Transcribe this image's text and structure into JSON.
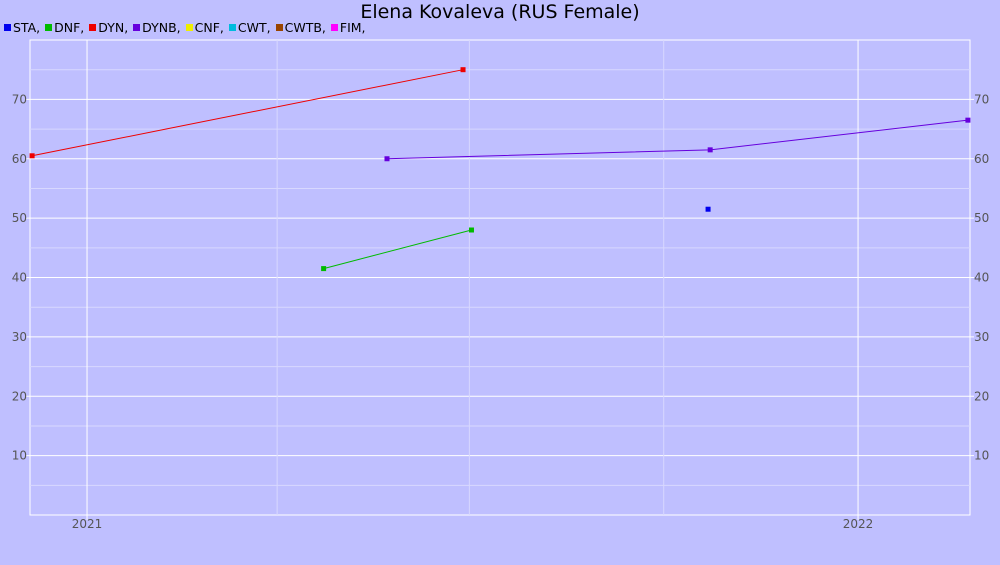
{
  "chart_data": {
    "type": "line",
    "title": "Elena Kovaleva (RUS Female)",
    "xlabel": "",
    "ylabel": "",
    "xlim": [
      "2020-12-05",
      "2022-02-23"
    ],
    "ylim": [
      0,
      80
    ],
    "y_ticks": [
      10,
      20,
      30,
      40,
      50,
      60,
      70
    ],
    "x_ticks": [
      {
        "date": "2021-01-01",
        "label": "2021"
      },
      {
        "date": "2022-01-01",
        "label": "2022"
      }
    ],
    "x_minor_gridlines": [
      "2021-04-01",
      "2021-07-01",
      "2021-10-01"
    ],
    "grid": true,
    "legend_position": "top-left",
    "series": [
      {
        "name": "STA",
        "color": "#0000ee",
        "points": [
          {
            "x": "2021-10-22",
            "y": 51.5
          }
        ]
      },
      {
        "name": "DNF",
        "color": "#00bb00",
        "points": [
          {
            "x": "2021-04-23",
            "y": 41.5
          },
          {
            "x": "2021-07-02",
            "y": 48
          }
        ]
      },
      {
        "name": "DYN",
        "color": "#ee0000",
        "points": [
          {
            "x": "2020-12-06",
            "y": 60.5
          },
          {
            "x": "2021-06-28",
            "y": 75
          }
        ]
      },
      {
        "name": "DYNB",
        "color": "#6600dd",
        "points": [
          {
            "x": "2021-05-23",
            "y": 60
          },
          {
            "x": "2021-10-23",
            "y": 61.5
          },
          {
            "x": "2022-02-22",
            "y": 66.5
          }
        ]
      },
      {
        "name": "CNF",
        "color": "#eeee00",
        "points": []
      },
      {
        "name": "CWT",
        "color": "#00bbdd",
        "points": []
      },
      {
        "name": "CWTB",
        "color": "#994400",
        "points": []
      },
      {
        "name": "FIM",
        "color": "#ff00ff",
        "points": []
      }
    ]
  }
}
